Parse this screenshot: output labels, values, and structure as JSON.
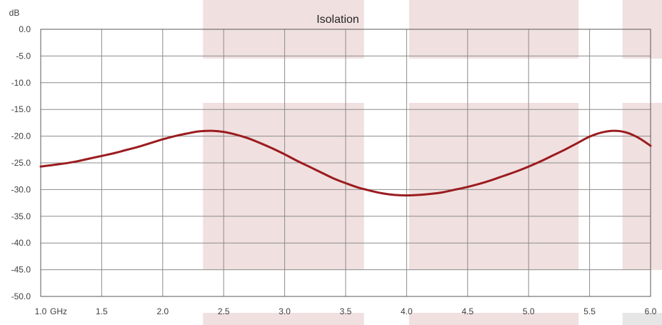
{
  "chart_data": {
    "type": "line",
    "title": "Isolation",
    "xlabel": "GHz",
    "ylabel": "dB",
    "xlim": [
      1.0,
      6.0
    ],
    "ylim": [
      -50.0,
      0.0
    ],
    "grid": true,
    "x_ticks": [
      "1.0",
      "1.5",
      "2.0",
      "2.5",
      "3.0",
      "3.5",
      "4.0",
      "4.5",
      "5.0",
      "5.5",
      "6.0"
    ],
    "y_ticks": [
      "0.0",
      "-5.0",
      "-10.0",
      "-15.0",
      "-20.0",
      "-25.0",
      "-30.0",
      "-35.0",
      "-40.0",
      "-45.0",
      "-50.0"
    ],
    "bands": [
      {
        "x0": 2.33,
        "x1": 3.65
      },
      {
        "x0": 4.02,
        "x1": 5.41
      },
      {
        "x0": 5.77,
        "x1": 6.1
      }
    ],
    "series": [
      {
        "color": "#9b1c1f",
        "x": [
          1.0,
          1.1,
          1.2,
          1.3,
          1.4,
          1.5,
          1.6,
          1.7,
          1.8,
          1.9,
          2.0,
          2.1,
          2.2,
          2.3,
          2.4,
          2.5,
          2.6,
          2.7,
          2.8,
          2.9,
          3.0,
          3.1,
          3.2,
          3.3,
          3.4,
          3.5,
          3.6,
          3.7,
          3.8,
          3.9,
          4.0,
          4.1,
          4.2,
          4.3,
          4.4,
          4.5,
          4.6,
          4.7,
          4.8,
          4.9,
          5.0,
          5.1,
          5.2,
          5.3,
          5.4,
          5.5,
          5.6,
          5.7,
          5.8,
          5.9,
          6.0
        ],
        "y": [
          -25.7,
          -25.4,
          -25.1,
          -24.7,
          -24.2,
          -23.7,
          -23.2,
          -22.6,
          -22.0,
          -21.3,
          -20.6,
          -20.0,
          -19.5,
          -19.1,
          -19.0,
          -19.2,
          -19.7,
          -20.4,
          -21.3,
          -22.3,
          -23.4,
          -24.6,
          -25.7,
          -26.8,
          -27.9,
          -28.8,
          -29.6,
          -30.2,
          -30.7,
          -31.0,
          -31.1,
          -31.0,
          -30.8,
          -30.5,
          -30.0,
          -29.5,
          -28.9,
          -28.2,
          -27.4,
          -26.6,
          -25.7,
          -24.7,
          -23.6,
          -22.5,
          -21.3,
          -20.1,
          -19.3,
          -19.0,
          -19.3,
          -20.3,
          -21.8
        ]
      }
    ]
  }
}
